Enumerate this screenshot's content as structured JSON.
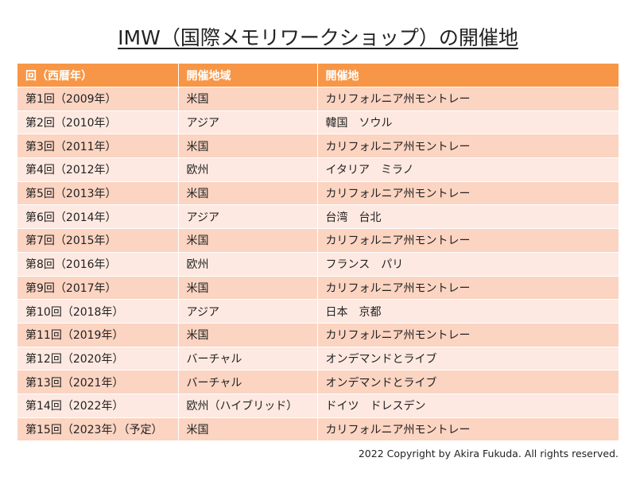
{
  "header": {
    "title": "IMW（国際メモリワークショップ）の開催地"
  },
  "table": {
    "columns": [
      "回（西暦年）",
      "開催地域",
      "開催地"
    ],
    "rows": [
      [
        "第1回（2009年）",
        "米国",
        "カリフォルニア州モントレー"
      ],
      [
        "第2回（2010年）",
        "アジア",
        "韓国　ソウル"
      ],
      [
        "第3回（2011年）",
        "米国",
        "カリフォルニア州モントレー"
      ],
      [
        "第4回（2012年）",
        "欧州",
        "イタリア　ミラノ"
      ],
      [
        "第5回（2013年）",
        "米国",
        "カリフォルニア州モントレー"
      ],
      [
        "第6回（2014年）",
        "アジア",
        "台湾　台北"
      ],
      [
        "第7回（2015年）",
        "米国",
        "カリフォルニア州モントレー"
      ],
      [
        "第8回（2016年）",
        "欧州",
        "フランス　パリ"
      ],
      [
        "第9回（2017年）",
        "米国",
        "カリフォルニア州モントレー"
      ],
      [
        "第10回（2018年）",
        "アジア",
        "日本　京都"
      ],
      [
        "第11回（2019年）",
        "米国",
        "カリフォルニア州モントレー"
      ],
      [
        "第12回（2020年）",
        "バーチャル",
        "オンデマンドとライブ"
      ],
      [
        "第13回（2021年）",
        "バーチャル",
        "オンデマンドとライブ"
      ],
      [
        "第14回（2022年）",
        "欧州（ハイブリッド）",
        "ドイツ　ドレスデン"
      ],
      [
        "第15回（2023年）（予定）",
        "米国",
        "カリフォルニア州モントレー"
      ]
    ]
  },
  "footer": {
    "copyright": "2022 Copyright by Akira Fukuda. All rights reserved."
  }
}
